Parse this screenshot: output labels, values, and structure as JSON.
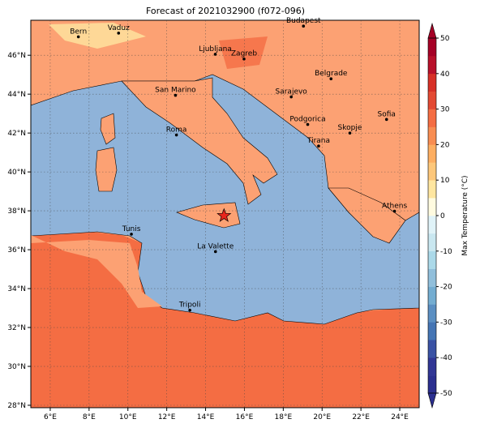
{
  "map": {
    "title": "Forecast of 2021032900 (f072-096)",
    "xlim": [
      5,
      25
    ],
    "ylim": [
      27.875,
      47.8
    ],
    "xticks": [
      {
        "value": 6,
        "label": "6°E"
      },
      {
        "value": 8,
        "label": "8°E"
      },
      {
        "value": 10,
        "label": "10°E"
      },
      {
        "value": 12,
        "label": "12°E"
      },
      {
        "value": 14,
        "label": "14°E"
      },
      {
        "value": 16,
        "label": "16°E"
      },
      {
        "value": 18,
        "label": "18°E"
      },
      {
        "value": 20,
        "label": "20°E"
      },
      {
        "value": 22,
        "label": "22°E"
      },
      {
        "value": 24,
        "label": "24°E"
      }
    ],
    "yticks": [
      {
        "value": 28,
        "label": "28°N"
      },
      {
        "value": 30,
        "label": "30°N"
      },
      {
        "value": 32,
        "label": "32°N"
      },
      {
        "value": 34,
        "label": "34°N"
      },
      {
        "value": 36,
        "label": "36°N"
      },
      {
        "value": 38,
        "label": "38°N"
      },
      {
        "value": 40,
        "label": "40°N"
      },
      {
        "value": 42,
        "label": "42°N"
      },
      {
        "value": 44,
        "label": "44°N"
      },
      {
        "value": 46,
        "label": "46°N"
      }
    ],
    "grid": true,
    "cities": [
      {
        "name": "Bern",
        "lon": 7.45,
        "lat": 46.95
      },
      {
        "name": "Vaduz",
        "lon": 9.52,
        "lat": 47.14
      },
      {
        "name": "Budapest",
        "lon": 19.04,
        "lat": 47.5
      },
      {
        "name": "Ljubljana",
        "lon": 14.5,
        "lat": 46.05
      },
      {
        "name": "Zagreb",
        "lon": 15.98,
        "lat": 45.81
      },
      {
        "name": "Belgrade",
        "lon": 20.46,
        "lat": 44.79
      },
      {
        "name": "Sarajevo",
        "lon": 18.41,
        "lat": 43.86
      },
      {
        "name": "San Marino",
        "lon": 12.45,
        "lat": 43.94
      },
      {
        "name": "Roma",
        "lon": 12.5,
        "lat": 41.9
      },
      {
        "name": "Podgorica",
        "lon": 19.26,
        "lat": 42.44
      },
      {
        "name": "Sofia",
        "lon": 23.32,
        "lat": 42.7
      },
      {
        "name": "Skopje",
        "lon": 21.43,
        "lat": 42.0
      },
      {
        "name": "Tirana",
        "lon": 19.82,
        "lat": 41.33
      },
      {
        "name": "Athens",
        "lon": 23.73,
        "lat": 37.98
      },
      {
        "name": "Tunis",
        "lon": 10.18,
        "lat": 36.8
      },
      {
        "name": "La Valette",
        "lon": 14.51,
        "lat": 35.9
      },
      {
        "name": "Tripoli",
        "lon": 13.19,
        "lat": 32.89
      }
    ],
    "marker": {
      "lon": 14.95,
      "lat": 37.75,
      "color": "#e8251c"
    },
    "colorbar": {
      "label": "Max Temperature (°C)",
      "lim": [
        -50,
        50
      ],
      "ticks": [
        -50,
        -40,
        -30,
        -20,
        -10,
        0,
        10,
        20,
        30,
        40,
        50
      ],
      "colors": [
        "#2b2f8f",
        "#313695",
        "#3a52a4",
        "#4575b4",
        "#5b8fc2",
        "#74add1",
        "#91bfdb",
        "#abd9e9",
        "#c9e7f0",
        "#e0f3f8",
        "#fffbe0",
        "#fee6a0",
        "#fdc77a",
        "#fdae61",
        "#f88d52",
        "#f46d43",
        "#e34a33",
        "#d73027",
        "#b8102a",
        "#a50026"
      ]
    }
  }
}
